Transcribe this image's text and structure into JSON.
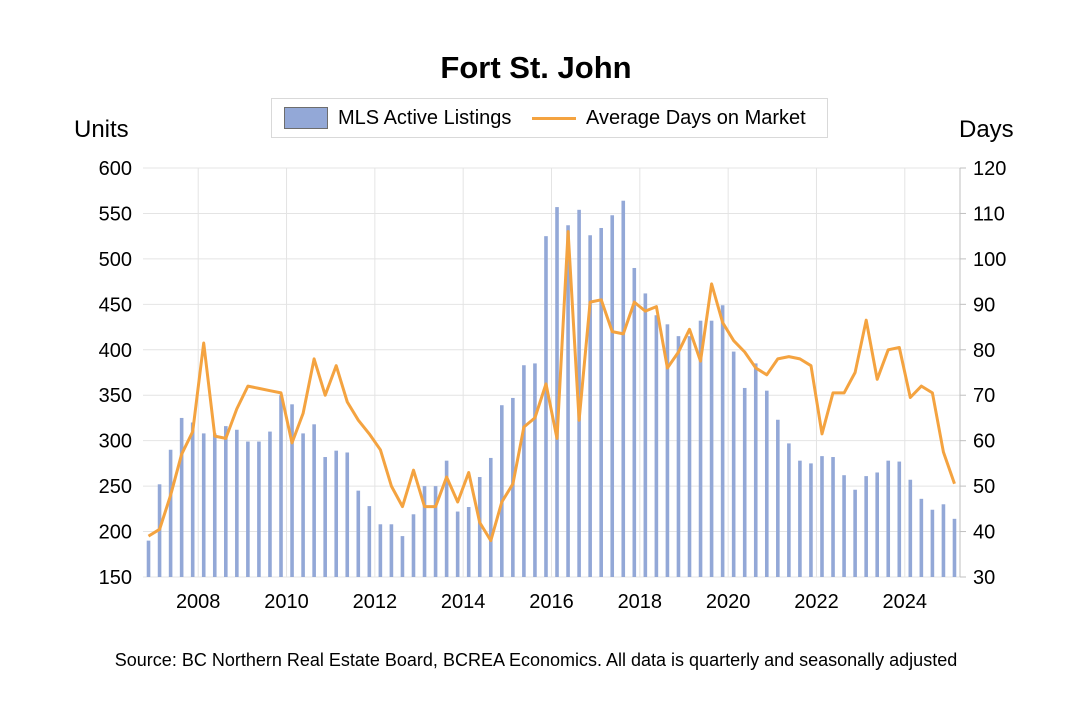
{
  "chart_data": {
    "type": "bar+line",
    "title": "Fort St. John",
    "source": "Source: BC Northern Real Estate Board, BCREA Economics. All data is quarterly and seasonally adjusted",
    "y_left": {
      "label": "Units",
      "range": [
        150,
        600
      ],
      "ticks": [
        "150",
        "200",
        "250",
        "300",
        "350",
        "400",
        "450",
        "500",
        "550",
        "600"
      ]
    },
    "y_right": {
      "label": "Days",
      "range": [
        30,
        120
      ],
      "ticks": [
        "30",
        "40",
        "50",
        "60",
        "70",
        "80",
        "90",
        "100",
        "110",
        "120"
      ]
    },
    "x_ticks": [
      "2008",
      "2010",
      "2012",
      "2014",
      "2016",
      "2018",
      "2020",
      "2022",
      "2024"
    ],
    "x_start_year": 2006.75,
    "grid": "horizontal and vertical",
    "legend_position": "top-center",
    "series": [
      {
        "name": "MLS Active Listings",
        "type": "bar",
        "axis": "left",
        "color": "#93a8d7",
        "values": [
          190,
          252,
          290,
          325,
          320,
          308,
          308,
          316,
          312,
          299,
          299,
          310,
          350,
          340,
          308,
          318,
          282,
          289,
          287,
          245,
          228,
          208,
          208,
          195,
          219,
          250,
          250,
          278,
          222,
          227,
          260,
          281,
          339,
          347,
          383,
          385,
          525,
          557,
          537,
          554,
          526,
          534,
          548,
          564,
          490,
          462,
          438,
          428,
          415,
          415,
          432,
          432,
          449,
          398,
          358,
          385,
          355,
          323,
          297,
          278,
          275,
          283,
          282,
          262,
          246,
          261,
          265,
          278,
          277,
          257,
          236,
          224,
          230,
          214
        ]
      },
      {
        "name": "Average Days on Market",
        "type": "line",
        "axis": "right",
        "color": "#f4a340",
        "values": [
          39,
          40.5,
          48,
          57,
          62,
          81.5,
          61,
          60.5,
          67,
          72,
          71.5,
          71,
          70.5,
          59.5,
          66,
          78,
          70,
          76.5,
          68.5,
          64.5,
          61.5,
          58,
          50,
          45.5,
          53.5,
          45.5,
          45.5,
          52,
          46.5,
          53,
          42,
          38,
          46.5,
          50.5,
          63,
          65,
          72.5,
          60.5,
          106,
          64.5,
          90.5,
          91,
          84,
          83.5,
          90.5,
          88.5,
          89.5,
          76,
          79.5,
          84.5,
          77.5,
          94.5,
          86,
          82,
          79.5,
          76,
          74.5,
          78,
          78.5,
          78,
          76.5,
          61.5,
          70.5,
          70.5,
          75,
          86.5,
          73.5,
          80,
          80.5,
          69.5,
          72,
          70.5,
          57.5,
          50.5
        ]
      }
    ]
  }
}
